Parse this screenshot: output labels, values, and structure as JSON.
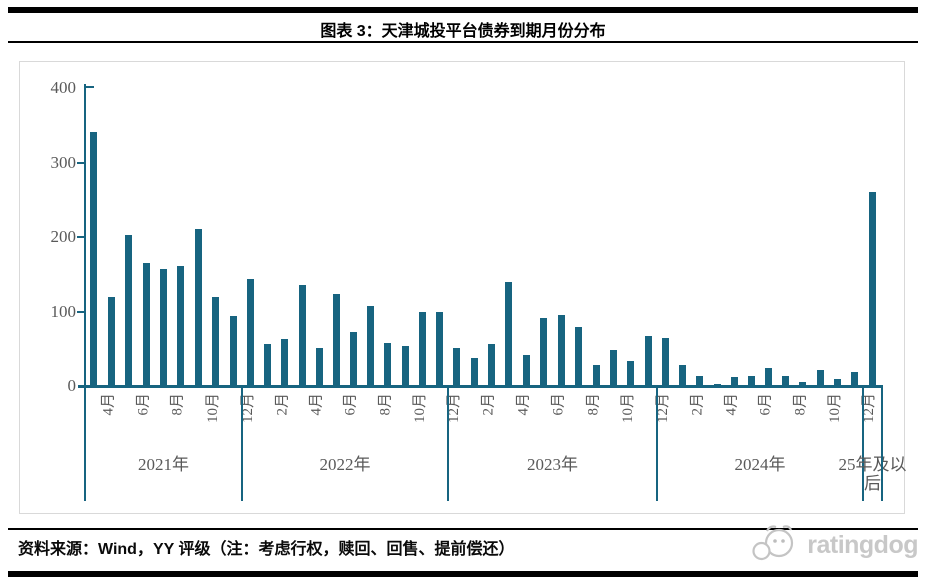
{
  "header": {
    "title": "图表 3：天津城投平台债券到期月份分布"
  },
  "chart_data": {
    "type": "bar",
    "title": "图表 3：天津城投平台债券到期月份分布",
    "xlabel": "",
    "ylabel": "",
    "ylim": [
      0,
      400
    ],
    "yticks": [
      0,
      100,
      200,
      300,
      400
    ],
    "grid": false,
    "legend": "none",
    "bar_color": "#176480",
    "axis_color": "#176480",
    "tick_label_color": "#595959",
    "sections": [
      {
        "year": "2021年",
        "months": [
          "4月",
          "5月",
          "6月",
          "7月",
          "8月",
          "9月",
          "10月",
          "11月",
          "12月"
        ],
        "visible_tick_labels": [
          "4月",
          "6月",
          "8月",
          "10月",
          "12月"
        ],
        "values": [
          341,
          119,
          203,
          165,
          157,
          161,
          211,
          120,
          94
        ]
      },
      {
        "year": "2022年",
        "months": [
          "1月",
          "2月",
          "3月",
          "4月",
          "5月",
          "6月",
          "7月",
          "8月",
          "9月",
          "10月",
          "11月",
          "12月"
        ],
        "visible_tick_labels": [
          "2月",
          "4月",
          "6月",
          "8月",
          "10月",
          "12月"
        ],
        "values": [
          144,
          56,
          63,
          136,
          51,
          124,
          72,
          107,
          58,
          54,
          100,
          99
        ]
      },
      {
        "year": "2023年",
        "months": [
          "1月",
          "2月",
          "3月",
          "4月",
          "5月",
          "6月",
          "7月",
          "8月",
          "9月",
          "10月",
          "11月",
          "12月"
        ],
        "visible_tick_labels": [
          "2月",
          "4月",
          "6月",
          "8月",
          "10月",
          "12月"
        ],
        "values": [
          51,
          37,
          56,
          140,
          41,
          91,
          95,
          79,
          28,
          48,
          33,
          67
        ]
      },
      {
        "year": "2024年",
        "months": [
          "1月",
          "2月",
          "3月",
          "4月",
          "5月",
          "6月",
          "7月",
          "8月",
          "9月",
          "10月",
          "11月",
          "12月"
        ],
        "visible_tick_labels": [
          "2月",
          "4月",
          "6月",
          "8月",
          "10月",
          "12月"
        ],
        "values": [
          64,
          28,
          13,
          3,
          12,
          14,
          24,
          14,
          6,
          21,
          9,
          19
        ]
      },
      {
        "year": "25年及以后",
        "months": [
          ""
        ],
        "visible_tick_labels": [],
        "values": [
          260
        ]
      }
    ]
  },
  "footer": {
    "source": "资料来源：Wind，YY 评级（注：考虑行权，赎回、回售、提前偿还）",
    "logo_text": "ratingdog"
  }
}
